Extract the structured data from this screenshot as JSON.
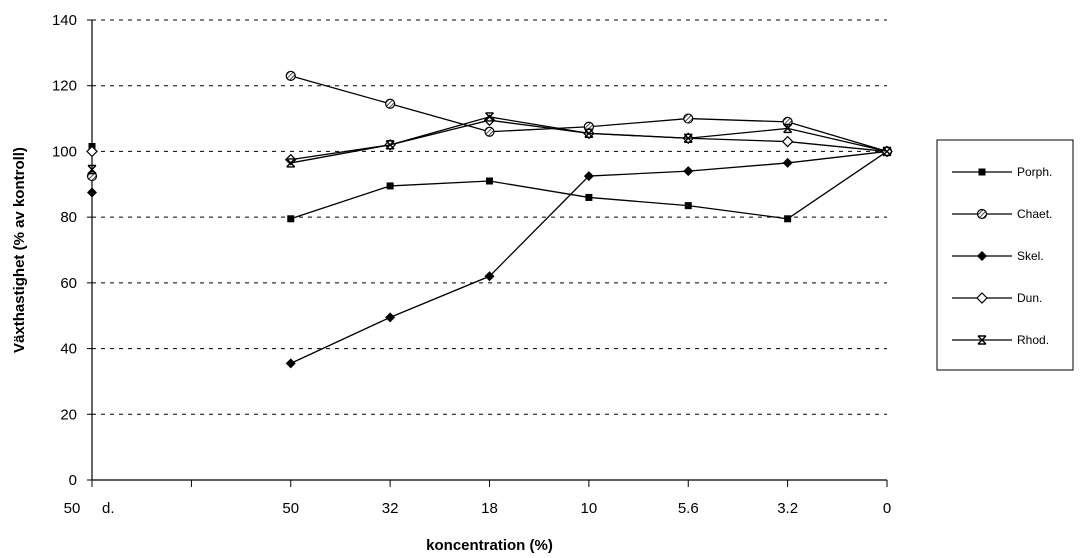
{
  "chart_data": {
    "type": "line",
    "xlabel": "koncentration (%)",
    "ylabel": "Växthastighet (% av kontroll)",
    "ylim": [
      0,
      140
    ],
    "yticks": [
      0,
      20,
      40,
      60,
      80,
      100,
      120,
      140
    ],
    "grid": "horizontal-dashed",
    "legend_position": "right",
    "x_ticks": [
      "50",
      "d.",
      "",
      "50",
      "32",
      "18",
      "10",
      "5.6",
      "3.2",
      "0"
    ],
    "categories": [
      "50 d.",
      "50",
      "32",
      "18",
      "10",
      "5.6",
      "3.2",
      "0"
    ],
    "series": [
      {
        "name": "Porph.",
        "marker": "square",
        "values": [
          101.5,
          79.5,
          89.5,
          91,
          86,
          83.5,
          79.5,
          100
        ]
      },
      {
        "name": "Chaet.",
        "marker": "circle-hatched",
        "values": [
          92.5,
          123,
          114.5,
          106,
          107.5,
          110,
          109,
          100
        ]
      },
      {
        "name": "Skel.",
        "marker": "diamond-filled",
        "values": [
          87.5,
          35.5,
          49.5,
          62,
          92.5,
          94,
          96.5,
          100
        ]
      },
      {
        "name": "Dun.",
        "marker": "diamond-open",
        "values": [
          100,
          97.5,
          102,
          109.5,
          105.5,
          104,
          103,
          100
        ]
      },
      {
        "name": "Rhod.",
        "marker": "x-star",
        "values": [
          94.5,
          96.5,
          102,
          110.5,
          105.5,
          104,
          107,
          100
        ]
      }
    ]
  }
}
